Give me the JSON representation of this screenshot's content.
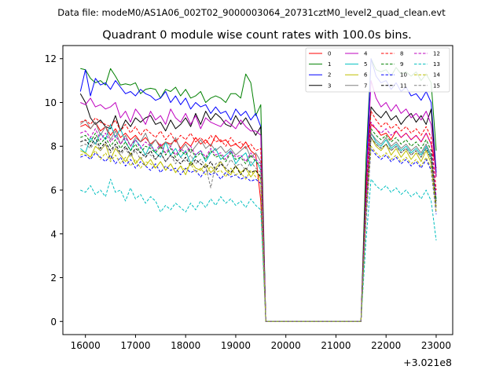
{
  "chart_data": {
    "type": "line",
    "suptitle": "Data file: modeM0/AS1A06_002T02_9000003064_20731cztM0_level2_quad_clean.evt",
    "title": "Quadrant 0 module wise count rates with 100.0s bins.",
    "xlabel": "",
    "ylabel": "",
    "x_offset_label": "+3.021e8",
    "xlim": [
      15550,
      23330
    ],
    "ylim": [
      -0.6,
      12.6
    ],
    "xticks": [
      16000,
      17000,
      18000,
      19000,
      20000,
      21000,
      22000,
      23000
    ],
    "yticks": [
      0,
      2,
      4,
      6,
      8,
      10,
      12
    ],
    "x": [
      15900,
      16000,
      16100,
      16200,
      16300,
      16400,
      16500,
      16600,
      16700,
      16800,
      16900,
      17000,
      17100,
      17200,
      17300,
      17400,
      17500,
      17600,
      17700,
      17800,
      17900,
      18000,
      18100,
      18200,
      18300,
      18400,
      18500,
      18600,
      18700,
      18800,
      18900,
      19000,
      19100,
      19200,
      19300,
      19400,
      19500,
      19600,
      19700,
      19800,
      19900,
      20000,
      20100,
      20200,
      20300,
      20400,
      20500,
      20600,
      20700,
      20800,
      20900,
      21000,
      21100,
      21200,
      21300,
      21400,
      21500,
      21600,
      21700,
      21800,
      21900,
      22000,
      22100,
      22200,
      22300,
      22400,
      22500,
      22600,
      22700,
      22800,
      22900,
      23000
    ],
    "gap": {
      "start": 19700,
      "end": 21600,
      "value": 0
    },
    "legend": {
      "placement": "upper-right",
      "columns": 4
    },
    "series": [
      {
        "name": "0",
        "color": "#ff0000",
        "dash": "solid",
        "pre": [
          8.9,
          9.0,
          8.8,
          9.1,
          8.7,
          8.9,
          8.5,
          8.8,
          8.4,
          8.6,
          8.3,
          8.5,
          8.2,
          8.4,
          8.1,
          8.3,
          8.0,
          8.2,
          8.1,
          8.3,
          7.9,
          8.2,
          8.0,
          8.4,
          8.1,
          8.3,
          8.0,
          8.5,
          8.2,
          8.3,
          8.0,
          8.1,
          7.9,
          8.2,
          7.8,
          7.6,
          5.5
        ],
        "post": [
          5.6,
          9.0,
          8.8,
          8.5,
          8.6,
          8.3,
          8.7,
          8.4,
          8.6,
          8.3,
          8.5,
          8.2,
          8.6,
          8.1,
          7.0
        ]
      },
      {
        "name": "1",
        "color": "#008000",
        "dash": "solid",
        "pre": [
          11.55,
          11.5,
          11.1,
          10.9,
          11.0,
          10.8,
          11.55,
          11.2,
          10.8,
          10.85,
          10.8,
          10.9,
          10.4,
          10.6,
          10.65,
          10.6,
          10.2,
          10.6,
          10.5,
          10.7,
          10.3,
          10.6,
          10.2,
          10.3,
          10.5,
          10.0,
          10.2,
          10.3,
          10.2,
          10.0,
          10.4,
          10.4,
          10.2,
          11.3,
          10.9,
          9.4,
          9.9
        ],
        "post": [
          7.4,
          12.0,
          11.5,
          11.4,
          11.5,
          11.2,
          11.6,
          11.3,
          11.4,
          11.2,
          11.4,
          11.0,
          11.3,
          10.9,
          7.8
        ]
      },
      {
        "name": "2",
        "color": "#0000ff",
        "dash": "solid",
        "pre": [
          10.5,
          11.5,
          10.3,
          11.1,
          10.8,
          10.9,
          10.6,
          11.0,
          10.7,
          10.4,
          10.5,
          10.3,
          10.6,
          10.4,
          10.3,
          10.1,
          10.2,
          10.5,
          10.0,
          10.3,
          9.9,
          10.2,
          9.7,
          10.0,
          9.8,
          9.9,
          9.5,
          9.8,
          9.5,
          9.6,
          9.2,
          9.7,
          9.4,
          9.6,
          9.2,
          9.5,
          8.9
        ],
        "post": [
          6.4,
          12.0,
          11.2,
          10.9,
          11.0,
          10.6,
          10.9,
          10.5,
          10.7,
          10.3,
          10.4,
          10.1,
          10.5,
          10.0,
          6.8
        ]
      },
      {
        "name": "3",
        "color": "#000000",
        "dash": "solid",
        "pre": [
          10.4,
          10.0,
          9.3,
          9.0,
          9.2,
          8.9,
          8.8,
          9.4,
          8.7,
          9.2,
          8.9,
          9.3,
          9.1,
          9.3,
          9.4,
          9.0,
          9.1,
          8.7,
          9.2,
          8.8,
          9.0,
          9.3,
          8.9,
          9.5,
          9.0,
          9.6,
          9.2,
          9.5,
          9.3,
          9.0,
          8.9,
          9.4,
          9.0,
          9.3,
          8.9,
          8.5,
          8.9
        ],
        "post": [
          6.5,
          9.8,
          9.5,
          9.3,
          9.6,
          9.2,
          9.4,
          9.0,
          9.3,
          9.5,
          9.1,
          9.4,
          9.0,
          9.7,
          6.6
        ]
      },
      {
        "name": "4",
        "color": "#bf00bf",
        "dash": "solid",
        "pre": [
          10.0,
          9.9,
          10.2,
          9.8,
          9.9,
          9.7,
          9.8,
          10.0,
          9.3,
          9.6,
          9.1,
          9.7,
          9.4,
          9.0,
          9.6,
          9.2,
          9.4,
          9.0,
          9.7,
          9.3,
          9.1,
          9.5,
          9.0,
          9.4,
          8.8,
          9.3,
          9.1,
          9.0,
          8.9,
          9.2,
          9.0,
          8.8,
          9.2,
          8.9,
          8.7,
          8.7,
          8.5
        ],
        "post": [
          6.0,
          11.0,
          10.2,
          9.8,
          10.0,
          9.6,
          9.9,
          9.5,
          9.7,
          9.3,
          9.5,
          9.2,
          9.6,
          9.0,
          6.6
        ]
      },
      {
        "name": "5",
        "color": "#00bfbf",
        "dash": "solid",
        "pre": [
          7.9,
          7.7,
          8.4,
          8.1,
          8.6,
          8.3,
          9.0,
          8.4,
          8.8,
          8.2,
          7.8,
          8.3,
          8.0,
          7.6,
          8.1,
          7.7,
          7.5,
          8.2,
          7.6,
          7.9,
          7.5,
          7.8,
          7.2,
          7.6,
          7.8,
          7.3,
          7.7,
          7.9,
          7.4,
          7.6,
          7.8,
          7.2,
          7.5,
          7.7,
          7.1,
          7.4,
          6.9
        ],
        "post": [
          5.2,
          8.6,
          8.2,
          8.0,
          8.3,
          7.9,
          8.1,
          7.8,
          8.0,
          7.7,
          7.9,
          7.6,
          8.0,
          7.5,
          5.6
        ]
      },
      {
        "name": "6",
        "color": "#bfbf00",
        "dash": "solid",
        "pre": [
          7.8,
          7.7,
          7.5,
          8.0,
          7.8,
          8.1,
          7.4,
          7.9,
          7.6,
          7.3,
          7.7,
          7.2,
          7.5,
          7.1,
          7.4,
          7.0,
          7.3,
          6.9,
          7.2,
          6.8,
          7.1,
          6.7,
          7.3,
          7.0,
          6.9,
          7.2,
          6.8,
          7.0,
          7.3,
          6.9,
          6.7,
          7.1,
          6.8,
          7.0,
          6.6,
          6.9,
          6.5
        ],
        "post": [
          4.9,
          8.4,
          8.0,
          7.8,
          8.1,
          7.6,
          7.9,
          7.5,
          7.8,
          7.4,
          7.7,
          7.3,
          7.8,
          7.2,
          5.2
        ]
      },
      {
        "name": "7",
        "color": "#808080",
        "dash": "solid",
        "pre": [
          9.0,
          9.2,
          8.8,
          9.1,
          8.5,
          8.9,
          8.3,
          8.7,
          8.1,
          8.5,
          8.0,
          8.4,
          8.2,
          8.6,
          8.0,
          8.3,
          7.9,
          8.2,
          8.0,
          8.4,
          7.8,
          8.1,
          7.7,
          8.0,
          8.3,
          7.9,
          8.1,
          7.8,
          8.0,
          7.7,
          7.9,
          7.6,
          7.8,
          8.0,
          7.5,
          7.7,
          7.3
        ],
        "post": [
          5.3,
          8.6,
          8.3,
          8.1,
          8.4,
          8.0,
          8.2,
          7.9,
          8.1,
          7.8,
          8.0,
          7.7,
          8.1,
          7.6,
          5.5
        ]
      },
      {
        "name": "8",
        "color": "#ff0000",
        "dash": "dashed",
        "pre": [
          9.1,
          9.2,
          9.0,
          9.3,
          9.1,
          9.0,
          8.9,
          9.2,
          8.7,
          9.0,
          8.6,
          8.9,
          8.5,
          8.8,
          8.6,
          8.4,
          8.7,
          8.3,
          8.6,
          8.2,
          8.5,
          8.3,
          8.6,
          8.2,
          8.4,
          8.1,
          8.5,
          8.2,
          8.3,
          8.0,
          8.4,
          8.1,
          8.2,
          7.9,
          8.1,
          7.8,
          7.9
        ],
        "post": [
          5.8,
          9.6,
          9.2,
          8.9,
          9.1,
          8.8,
          9.0,
          8.7,
          8.9,
          8.6,
          8.8,
          8.5,
          8.9,
          8.4,
          6.0
        ]
      },
      {
        "name": "9",
        "color": "#008000",
        "dash": "dashed",
        "pre": [
          8.4,
          8.5,
          8.2,
          8.6,
          8.1,
          8.4,
          8.0,
          8.3,
          7.9,
          8.2,
          7.8,
          8.1,
          7.7,
          8.0,
          7.9,
          7.7,
          8.0,
          7.6,
          7.9,
          7.5,
          7.8,
          7.6,
          7.9,
          7.5,
          7.7,
          7.4,
          7.8,
          7.5,
          7.6,
          7.3,
          7.7,
          7.4,
          7.5,
          7.2,
          7.6,
          7.3,
          7.1
        ],
        "post": [
          5.2,
          8.8,
          8.5,
          8.3,
          8.5,
          8.2,
          8.4,
          8.1,
          8.3,
          8.0,
          8.2,
          7.9,
          8.3,
          7.8,
          5.5
        ]
      },
      {
        "name": "10",
        "color": "#0000ff",
        "dash": "dashed",
        "pre": [
          7.5,
          7.6,
          7.4,
          7.7,
          7.5,
          7.3,
          7.6,
          7.2,
          7.5,
          7.1,
          7.4,
          7.0,
          7.3,
          7.1,
          6.9,
          7.2,
          6.8,
          7.1,
          6.9,
          7.0,
          6.7,
          7.0,
          6.8,
          6.9,
          6.6,
          6.9,
          6.7,
          6.8,
          6.5,
          6.8,
          6.6,
          6.7,
          6.5,
          6.6,
          6.4,
          6.5,
          6.3
        ],
        "post": [
          4.6,
          7.9,
          7.6,
          7.4,
          7.6,
          7.3,
          7.5,
          7.2,
          7.4,
          7.1,
          7.3,
          7.0,
          7.4,
          6.9,
          4.9
        ]
      },
      {
        "name": "11",
        "color": "#000000",
        "dash": "dashed",
        "pre": [
          8.2,
          8.3,
          8.0,
          8.4,
          7.9,
          8.2,
          7.8,
          8.1,
          7.7,
          8.0,
          7.6,
          7.9,
          7.7,
          7.5,
          7.8,
          7.4,
          7.7,
          7.3,
          7.6,
          7.4,
          7.2,
          7.5,
          7.1,
          7.4,
          7.2,
          7.0,
          7.3,
          6.9,
          7.2,
          7.0,
          6.8,
          7.1,
          6.7,
          7.0,
          6.8,
          6.9,
          6.6
        ],
        "post": [
          5.0,
          8.4,
          8.1,
          7.9,
          8.1,
          7.8,
          8.0,
          7.7,
          7.9,
          7.6,
          7.8,
          7.5,
          7.9,
          7.4,
          5.3
        ]
      },
      {
        "name": "12",
        "color": "#bf00bf",
        "dash": "dashed",
        "pre": [
          8.6,
          8.7,
          8.4,
          8.8,
          8.3,
          8.6,
          8.2,
          8.5,
          8.1,
          8.4,
          8.0,
          8.3,
          7.9,
          8.2,
          8.0,
          7.8,
          8.1,
          7.7,
          8.0,
          7.6,
          7.9,
          7.7,
          8.0,
          7.6,
          7.8,
          7.5,
          7.9,
          7.6,
          7.7,
          7.4,
          7.8,
          7.5,
          7.6,
          7.3,
          7.7,
          7.4,
          7.2
        ],
        "post": [
          5.4,
          9.1,
          8.8,
          8.6,
          8.8,
          8.5,
          8.7,
          8.4,
          8.6,
          8.3,
          8.5,
          8.2,
          8.6,
          8.1,
          5.7
        ]
      },
      {
        "name": "13",
        "color": "#00bfbf",
        "dash": "dashed",
        "pre": [
          6.0,
          5.9,
          6.2,
          5.8,
          6.0,
          5.7,
          6.5,
          5.9,
          6.0,
          5.5,
          6.1,
          5.6,
          5.8,
          5.4,
          5.7,
          5.5,
          5.0,
          5.3,
          5.1,
          5.4,
          5.2,
          5.0,
          5.4,
          5.1,
          5.5,
          5.2,
          5.6,
          5.3,
          5.7,
          5.4,
          5.6,
          5.3,
          5.5,
          5.2,
          5.6,
          5.3,
          5.1
        ],
        "post": [
          3.7,
          6.5,
          6.2,
          6.0,
          6.2,
          5.9,
          6.1,
          5.8,
          6.0,
          5.7,
          5.9,
          5.6,
          6.0,
          5.5,
          3.7
        ]
      },
      {
        "name": "14",
        "color": "#bfbf00",
        "dash": "dashed",
        "pre": [
          7.6,
          7.7,
          7.5,
          7.8,
          7.4,
          7.7,
          7.3,
          7.6,
          7.2,
          7.5,
          7.1,
          7.4,
          7.0,
          7.3,
          7.2,
          7.0,
          7.3,
          6.9,
          7.2,
          6.8,
          7.1,
          6.9,
          7.2,
          6.8,
          7.0,
          6.7,
          7.1,
          6.8,
          6.9,
          6.6,
          7.0,
          6.7,
          6.8,
          6.5,
          6.9,
          6.6,
          6.4
        ],
        "post": [
          4.8,
          8.0,
          7.7,
          7.5,
          7.7,
          7.4,
          7.6,
          7.3,
          7.5,
          7.2,
          7.4,
          7.1,
          7.5,
          7.0,
          5.0
        ]
      },
      {
        "name": "15",
        "color": "#808080",
        "dash": "dashed",
        "pre": [
          8.0,
          8.1,
          7.9,
          8.2,
          7.8,
          8.1,
          7.7,
          8.0,
          7.6,
          7.9,
          7.5,
          7.8,
          7.4,
          7.7,
          7.6,
          7.4,
          7.7,
          7.3,
          7.6,
          7.2,
          7.5,
          7.3,
          7.6,
          7.2,
          7.4,
          7.1,
          6.1,
          7.2,
          7.3,
          7.0,
          7.4,
          7.1,
          7.2,
          6.9,
          7.3,
          7.0,
          6.8
        ],
        "post": [
          5.0,
          8.4,
          8.1,
          7.9,
          8.1,
          7.8,
          8.0,
          7.7,
          7.9,
          7.6,
          7.8,
          7.5,
          7.9,
          7.4,
          5.2
        ]
      }
    ]
  }
}
